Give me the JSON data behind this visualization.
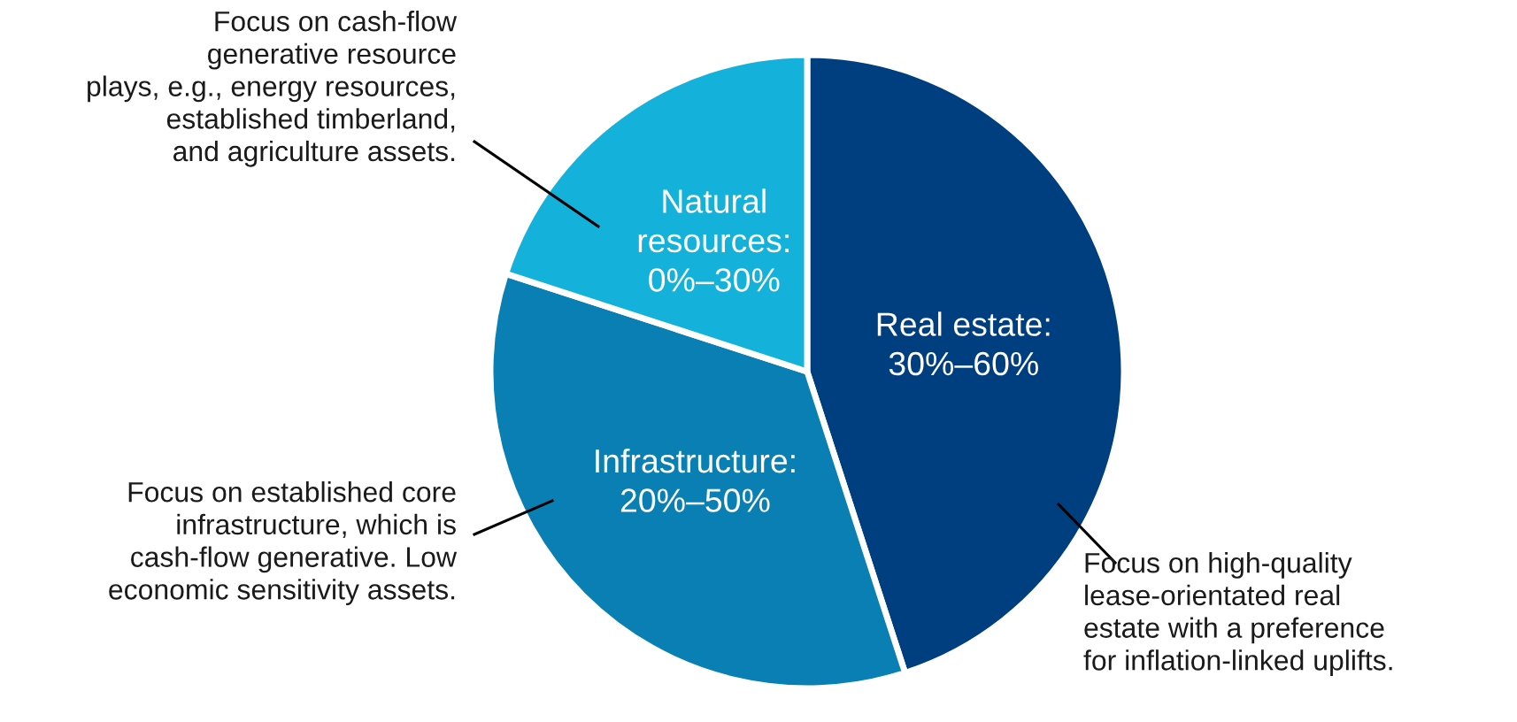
{
  "chart_data": {
    "type": "pie",
    "categories": [
      "Real estate:\n30%–60%",
      "Infrastructure:\n20%–50%",
      "Natural\nresources:\n0%–30%"
    ],
    "values": [
      45,
      35,
      20
    ],
    "colors": [
      "#003f7f",
      "#0a7fb3",
      "#14b1da"
    ],
    "annotations": [
      "Focus on high-quality\nlease-orientated real\nestate with a preference\nfor inflation-linked uplifts.",
      "Focus on established core\ninfrastructure, which is\ncash-flow generative. Low\neconomic sensitivity assets.",
      "Focus on cash-flow\ngenerative resource\nplays, e.g., energy resources,\nestablished timberland,\nand agriculture assets."
    ],
    "legend": false
  }
}
